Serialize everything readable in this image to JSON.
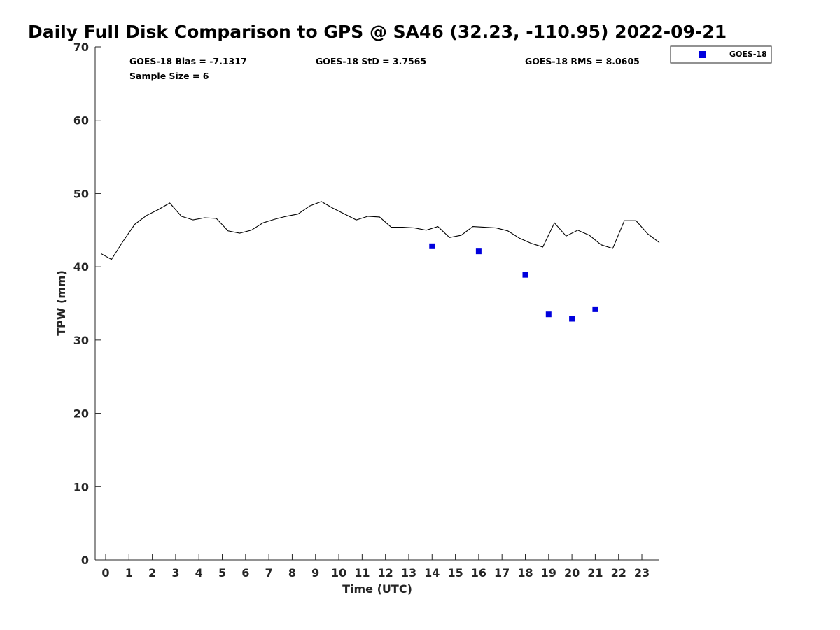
{
  "chart_data": {
    "type": "scatter",
    "title": "Daily Full Disk Comparison to GPS @ SA46 (32.23, -110.95) 2022-09-21",
    "xlabel": "Time (UTC)",
    "ylabel": "TPW (mm)",
    "xlim": [
      -0.45,
      23.75
    ],
    "ylim": [
      0,
      70
    ],
    "x_ticks": [
      0,
      1,
      2,
      3,
      4,
      5,
      6,
      7,
      8,
      9,
      10,
      11,
      12,
      13,
      14,
      15,
      16,
      17,
      18,
      19,
      20,
      21,
      22,
      23
    ],
    "x_tick_labels": [
      "0",
      "1",
      "2",
      "3",
      "4",
      "5",
      "6",
      "7",
      "8",
      "9",
      "10",
      "11",
      "12",
      "13",
      "14",
      "15",
      "16",
      "17",
      "18",
      "19",
      "20",
      "21",
      "22",
      "23"
    ],
    "y_ticks": [
      0,
      10,
      20,
      30,
      40,
      50,
      60,
      70
    ],
    "y_tick_labels": [
      "0",
      "10",
      "20",
      "30",
      "40",
      "50",
      "60",
      "70"
    ],
    "grid": false,
    "legend_position": "outside-top-right",
    "stats": {
      "bias": "GOES-18 Bias = -7.1317",
      "std": "GOES-18 StD = 3.7565",
      "rms": "GOES-18 RMS = 8.0605",
      "sample_size": "Sample Size = 6"
    },
    "series": [
      {
        "kind": "line",
        "color": "#000000",
        "x": [
          -0.2,
          0.25,
          0.75,
          1.25,
          1.75,
          2.25,
          2.75,
          3.25,
          3.75,
          4.25,
          4.75,
          5.25,
          5.75,
          6.25,
          6.75,
          7.25,
          7.75,
          8.25,
          8.75,
          9.25,
          9.75,
          10.25,
          10.75,
          11.25,
          11.75,
          12.25,
          12.75,
          13.25,
          13.75,
          14.25,
          14.75,
          15.25,
          15.75,
          16.25,
          16.75,
          17.25,
          17.75,
          18.25,
          18.75,
          19.25,
          19.75,
          20.25,
          20.75,
          21.25,
          21.75,
          22.25,
          22.75,
          23.25,
          23.75
        ],
        "y": [
          41.8,
          41.0,
          43.5,
          45.8,
          47.0,
          47.8,
          48.7,
          46.9,
          46.4,
          46.7,
          46.6,
          44.9,
          44.6,
          45.0,
          46.0,
          46.5,
          46.9,
          47.2,
          48.3,
          48.9,
          48.0,
          47.2,
          46.4,
          46.9,
          46.8,
          45.4,
          45.4,
          45.3,
          45.0,
          45.5,
          44.0,
          44.3,
          45.5,
          45.4,
          45.3,
          44.9,
          43.9,
          43.2,
          42.7,
          46.0,
          44.2,
          45.0,
          44.3,
          43.0,
          42.5,
          46.3,
          46.3,
          44.5,
          43.3
        ]
      },
      {
        "kind": "scatter",
        "name": "GOES-18",
        "color": "#0000dd",
        "marker": "square",
        "x": [
          14,
          16,
          18,
          19,
          20,
          21
        ],
        "y": [
          42.8,
          42.1,
          38.9,
          33.5,
          32.9,
          34.2
        ]
      }
    ]
  }
}
